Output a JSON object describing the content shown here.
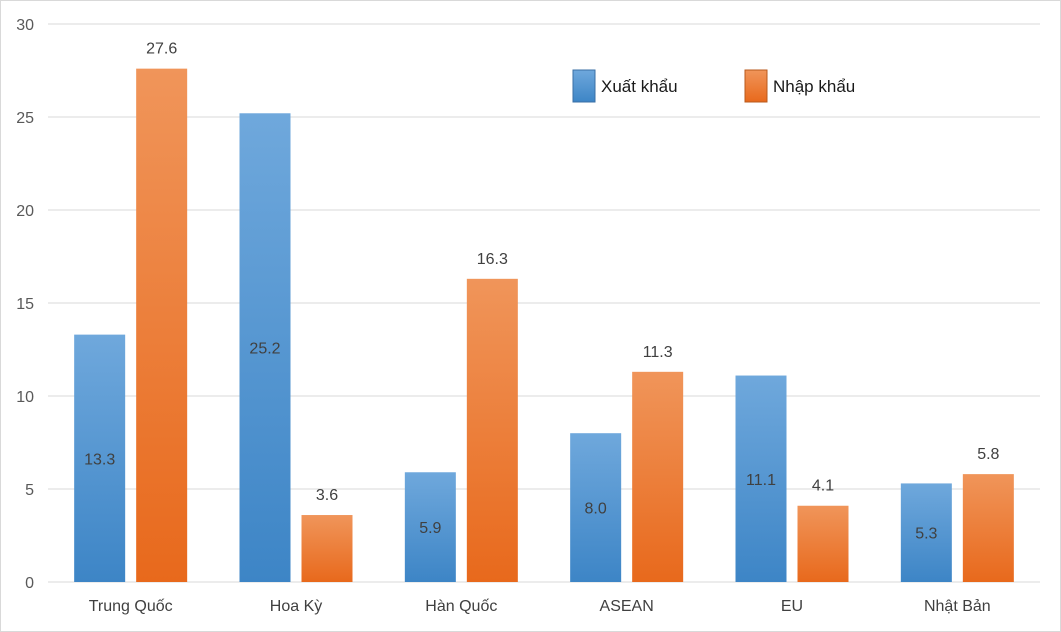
{
  "chart_data": {
    "type": "bar",
    "title": "",
    "xlabel": "",
    "ylabel": "",
    "ylim": [
      0,
      30
    ],
    "yticks": [
      0,
      5,
      10,
      15,
      20,
      25,
      30
    ],
    "grid": true,
    "legend_position": "top-right",
    "categories": [
      "Trung Quốc",
      "Hoa Kỳ",
      "Hàn Quốc",
      "ASEAN",
      "EU",
      "Nhật Bản"
    ],
    "series": [
      {
        "name": "Xuất khẩu",
        "color": "#5b9bd5",
        "values": [
          13.3,
          25.2,
          5.9,
          8.0,
          11.1,
          5.3
        ],
        "labels": [
          "13.3",
          "25.2",
          "5.9",
          "8.0",
          "11.1",
          "5.3"
        ],
        "label_position": "inside"
      },
      {
        "name": "Nhập khẩu",
        "color": "#ed7d31",
        "values": [
          27.6,
          3.6,
          16.3,
          11.3,
          4.1,
          5.8
        ],
        "labels": [
          "27.6",
          "3.6",
          "16.3",
          "11.3",
          "4.1",
          "5.8"
        ],
        "label_position": "above"
      }
    ]
  }
}
